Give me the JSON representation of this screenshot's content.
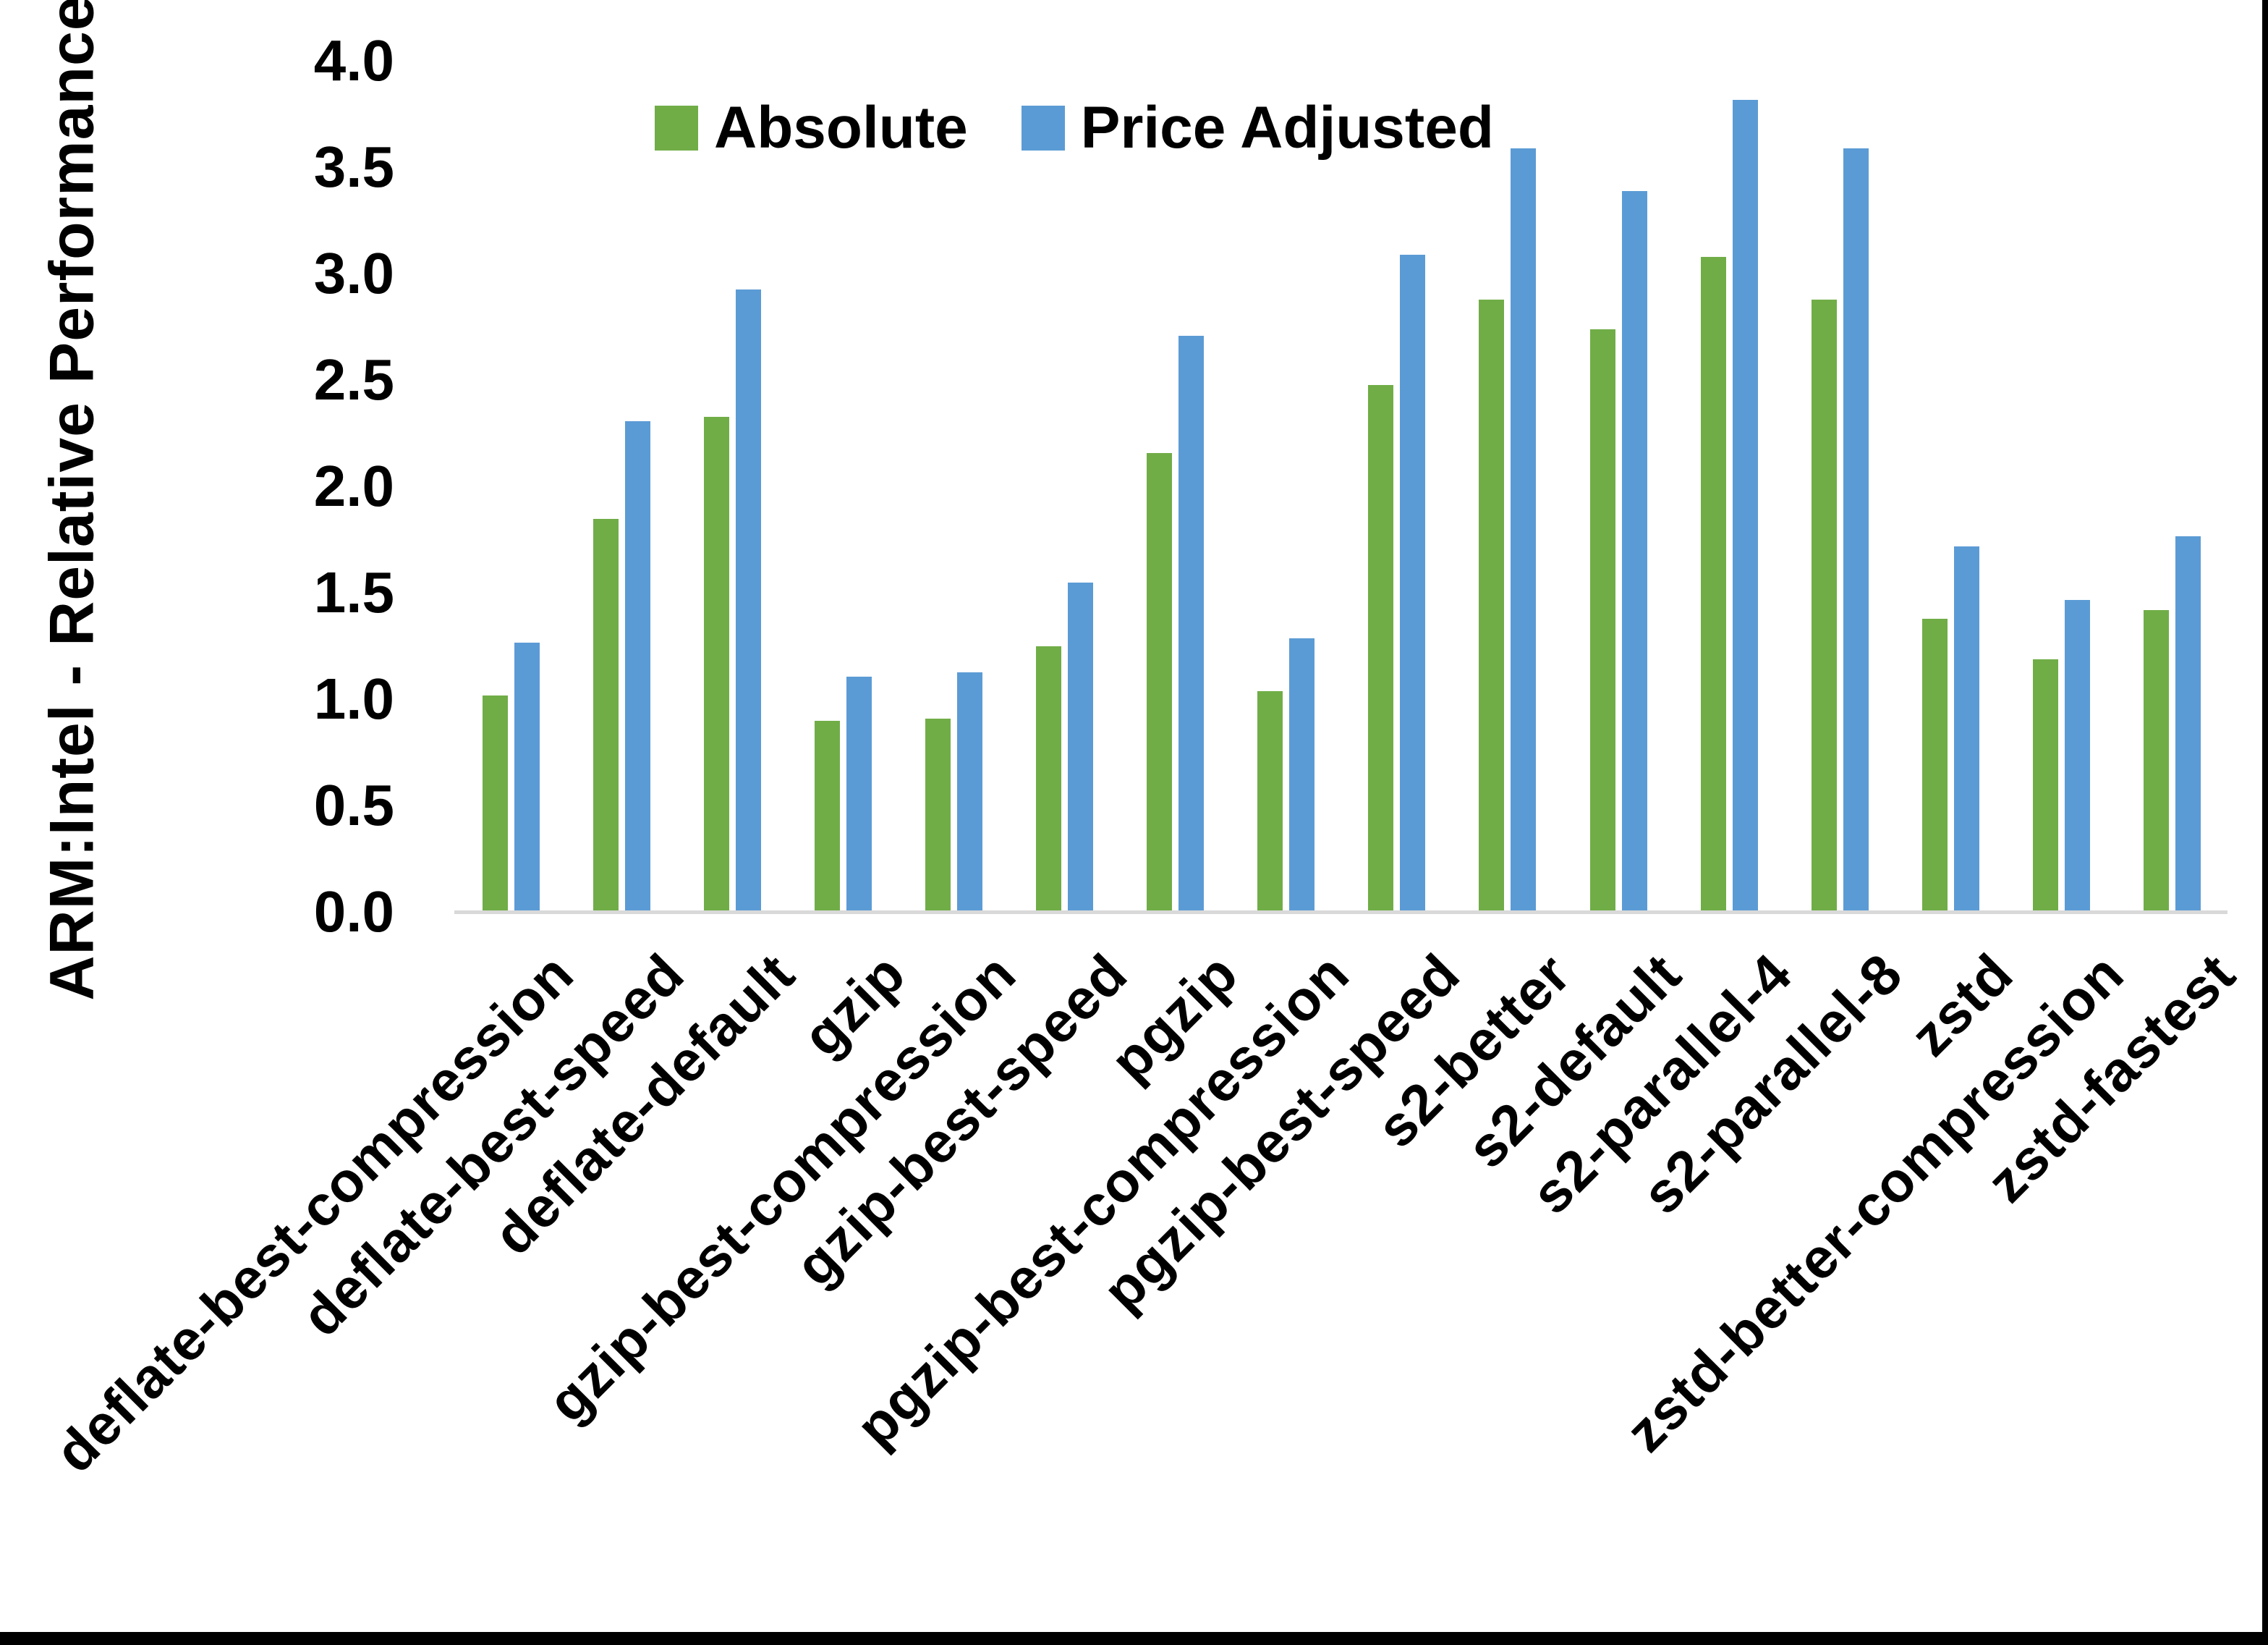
{
  "chart_data": {
    "type": "bar",
    "title": "",
    "xlabel": "",
    "ylabel": "ARM:Intel - Relative Performance",
    "ylim": [
      0.0,
      4.0
    ],
    "ytick_step": 0.5,
    "ytick_labels": [
      "0.0",
      "0.5",
      "1.0",
      "1.5",
      "2.0",
      "2.5",
      "3.0",
      "3.5",
      "4.0"
    ],
    "grid": false,
    "legend_position": "top-center",
    "categories": [
      "deflate-best-compression",
      "deflate-best-speed",
      "deflate-default",
      "gzip",
      "gzip-best-compression",
      "gzip-best-speed",
      "pgzip",
      "pgzip-best-compression",
      "pgzip-best-speed",
      "s2-better",
      "s2-default",
      "s2-parallel-4",
      "s2-parallel-8",
      "zstd",
      "zstd-better-compression",
      "zstd-fastest"
    ],
    "series": [
      {
        "name": "Absolute",
        "color": "#70AD47",
        "values": [
          1.01,
          1.84,
          2.32,
          0.89,
          0.9,
          1.24,
          2.15,
          1.03,
          2.47,
          2.87,
          2.73,
          3.07,
          2.87,
          1.37,
          1.18,
          1.41
        ]
      },
      {
        "name": "Price Adjusted",
        "color": "#5B9BD5",
        "values": [
          1.26,
          2.3,
          2.92,
          1.1,
          1.12,
          1.54,
          2.7,
          1.28,
          3.08,
          3.58,
          3.38,
          3.81,
          3.58,
          1.71,
          1.46,
          1.76
        ]
      }
    ]
  },
  "colors": {
    "axis_line": "#D9D9D9",
    "text": "#000000",
    "border": "#000000",
    "background": "#FFFFFF"
  }
}
